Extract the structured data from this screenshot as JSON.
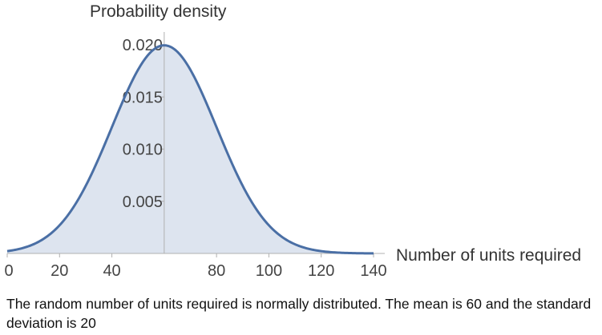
{
  "chart_data": {
    "type": "area",
    "xlabel": "Number of units required",
    "ylabel": "Probability density",
    "distribution": "normal",
    "mean": 60,
    "sd": 20,
    "xlim": [
      0,
      140
    ],
    "ylim": [
      0,
      0.02
    ],
    "x_ticks": [
      0,
      20,
      40,
      80,
      100,
      120,
      140
    ],
    "x_tick_labels": [
      "0",
      "20",
      "40",
      "80",
      "100",
      "120",
      "140"
    ],
    "y_ticks": [
      0.005,
      0.01,
      0.015,
      0.02
    ],
    "y_tick_labels": [
      "0.005",
      "0.010",
      "0.015",
      "0.020"
    ],
    "line_color": "#4a6fa5",
    "fill_color": "#dde4ef",
    "grid": false
  },
  "caption": "The random number of units required is normally distributed. The mean is 60 and the standard deviation is 20"
}
